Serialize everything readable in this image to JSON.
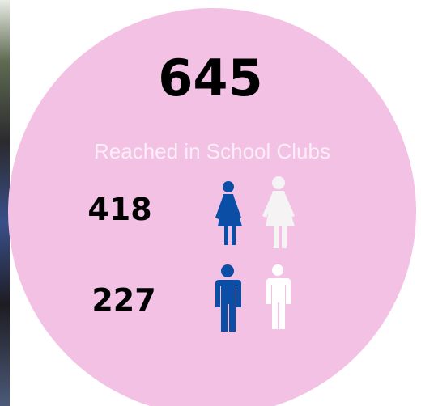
{
  "total": 645,
  "label": "Reached in School Clubs",
  "rows": [
    {
      "value": 418
    },
    {
      "value": 227
    }
  ]
}
